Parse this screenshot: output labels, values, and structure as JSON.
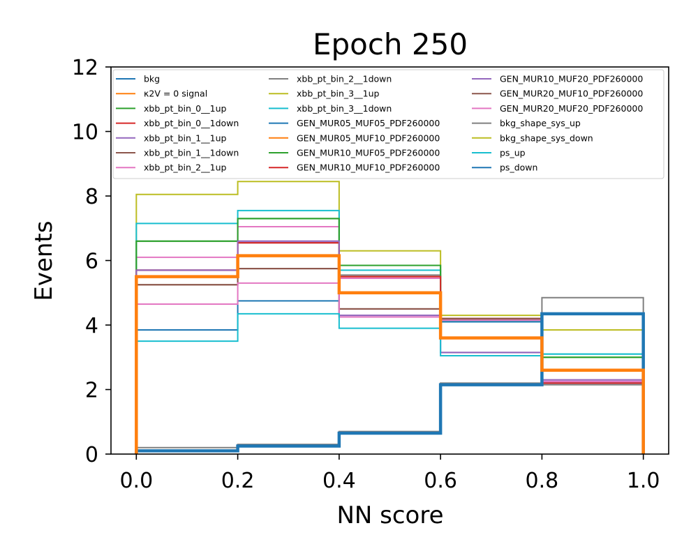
{
  "chart_data": {
    "type": "line",
    "title": "Epoch 250",
    "xlabel": "NN score",
    "ylabel": "Events",
    "xlim": [
      -0.05,
      1.05
    ],
    "ylim": [
      0,
      12
    ],
    "xticks": [
      "0.0",
      "0.2",
      "0.4",
      "0.6",
      "0.8",
      "1.0"
    ],
    "yticks": [
      "0",
      "2",
      "4",
      "6",
      "8",
      "10",
      "12"
    ],
    "bin_edges": [
      0.0,
      0.2,
      0.4,
      0.6,
      0.8,
      1.0
    ],
    "grid": false,
    "legend_position": "top",
    "series": [
      {
        "name": "bkg",
        "color": "#1f77b4",
        "values": [
          0.1,
          0.25,
          0.65,
          2.15,
          4.35
        ],
        "bold": true
      },
      {
        "name": "κ2V = 0 signal",
        "color": "#ff7f0e",
        "values": [
          5.5,
          6.15,
          5.0,
          3.6,
          2.6
        ],
        "bold": true
      },
      {
        "name": "xbb_pt_bin_0__1up",
        "color": "#2ca02c",
        "values": [
          6.6,
          7.3,
          5.85,
          4.15,
          3.0
        ]
      },
      {
        "name": "xbb_pt_bin_0__1down",
        "color": "#d62728",
        "values": [
          5.7,
          6.55,
          5.5,
          4.2,
          2.2
        ]
      },
      {
        "name": "xbb_pt_bin_1__1up",
        "color": "#9467bd",
        "values": [
          5.7,
          6.6,
          4.3,
          3.15,
          2.3
        ]
      },
      {
        "name": "xbb_pt_bin_1__1down",
        "color": "#8c564b",
        "values": [
          5.25,
          5.75,
          4.5,
          4.2,
          2.25
        ]
      },
      {
        "name": "xbb_pt_bin_2__1up",
        "color": "#e377c2",
        "values": [
          6.1,
          7.05,
          5.45,
          4.2,
          2.3
        ]
      },
      {
        "name": "xbb_pt_bin_2__1down",
        "color": "#7f7f7f",
        "values": [
          5.7,
          6.55,
          5.55,
          4.2,
          2.15
        ]
      },
      {
        "name": "xbb_pt_bin_3__1up",
        "color": "#bcbd22",
        "values": [
          8.05,
          8.45,
          6.3,
          4.3,
          3.85
        ]
      },
      {
        "name": "xbb_pt_bin_3__1down",
        "color": "#17becf",
        "values": [
          7.15,
          7.55,
          5.7,
          4.1,
          3.1
        ]
      },
      {
        "name": "GEN_MUR05_MUF05_PDF260000",
        "color": "#1f77b4",
        "values": [
          3.85,
          4.75,
          4.25,
          4.1,
          2.2
        ]
      },
      {
        "name": "GEN_MUR05_MUF10_PDF260000",
        "color": "#ff7f0e",
        "values": [
          5.5,
          6.15,
          5.0,
          3.6,
          2.6
        ]
      },
      {
        "name": "GEN_MUR10_MUF05_PDF260000",
        "color": "#2ca02c",
        "values": [
          6.6,
          7.3,
          5.85,
          4.15,
          3.0
        ]
      },
      {
        "name": "GEN_MUR10_MUF10_PDF260000",
        "color": "#d62728",
        "values": [
          5.7,
          6.55,
          5.5,
          4.2,
          2.2
        ]
      },
      {
        "name": "GEN_MUR10_MUF20_PDF260000",
        "color": "#9467bd",
        "values": [
          5.7,
          6.6,
          4.3,
          3.15,
          2.3
        ]
      },
      {
        "name": "GEN_MUR20_MUF10_PDF260000",
        "color": "#8c564b",
        "values": [
          5.25,
          5.75,
          4.5,
          4.2,
          2.25
        ]
      },
      {
        "name": "GEN_MUR20_MUF20_PDF260000",
        "color": "#e377c2",
        "values": [
          4.65,
          5.3,
          4.25,
          4.15,
          2.25
        ]
      },
      {
        "name": "bkg_shape_sys_up",
        "color": "#7f7f7f",
        "values": [
          0.2,
          0.3,
          0.7,
          2.2,
          4.85
        ]
      },
      {
        "name": "bkg_shape_sys_down",
        "color": "#bcbd22",
        "values": [
          0.12,
          0.25,
          0.65,
          2.15,
          3.85
        ]
      },
      {
        "name": "ps_up",
        "color": "#17becf",
        "values": [
          3.5,
          4.35,
          3.9,
          3.05,
          3.1
        ]
      },
      {
        "name": "ps_down",
        "color": "#1f77b4",
        "values": [
          0.1,
          0.25,
          0.65,
          2.15,
          4.35
        ]
      }
    ]
  }
}
